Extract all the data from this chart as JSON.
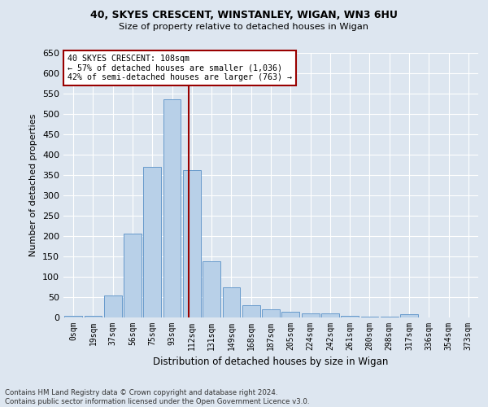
{
  "title1": "40, SKYES CRESCENT, WINSTANLEY, WIGAN, WN3 6HU",
  "title2": "Size of property relative to detached houses in Wigan",
  "xlabel": "Distribution of detached houses by size in Wigan",
  "ylabel": "Number of detached properties",
  "bar_labels": [
    "0sqm",
    "19sqm",
    "37sqm",
    "56sqm",
    "75sqm",
    "93sqm",
    "112sqm",
    "131sqm",
    "149sqm",
    "168sqm",
    "187sqm",
    "205sqm",
    "224sqm",
    "242sqm",
    "261sqm",
    "280sqm",
    "298sqm",
    "317sqm",
    "336sqm",
    "354sqm",
    "373sqm"
  ],
  "bar_values": [
    5,
    5,
    55,
    207,
    370,
    537,
    363,
    138,
    75,
    30,
    20,
    15,
    10,
    10,
    5,
    2,
    2,
    8,
    1,
    1,
    1
  ],
  "bar_color": "#b8d0e8",
  "bar_edge_color": "#6699cc",
  "vline_x": 5.85,
  "vline_color": "#990000",
  "annotation_line1": "40 SKYES CRESCENT: 108sqm",
  "annotation_line2": "← 57% of detached houses are smaller (1,036)",
  "annotation_line3": "42% of semi-detached houses are larger (763) →",
  "annotation_box_color": "white",
  "annotation_box_edge": "#990000",
  "bg_color": "#dde6f0",
  "grid_color": "white",
  "footnote": "Contains HM Land Registry data © Crown copyright and database right 2024.\nContains public sector information licensed under the Open Government Licence v3.0.",
  "ylim": [
    0,
    650
  ],
  "yticks": [
    0,
    50,
    100,
    150,
    200,
    250,
    300,
    350,
    400,
    450,
    500,
    550,
    600,
    650
  ]
}
